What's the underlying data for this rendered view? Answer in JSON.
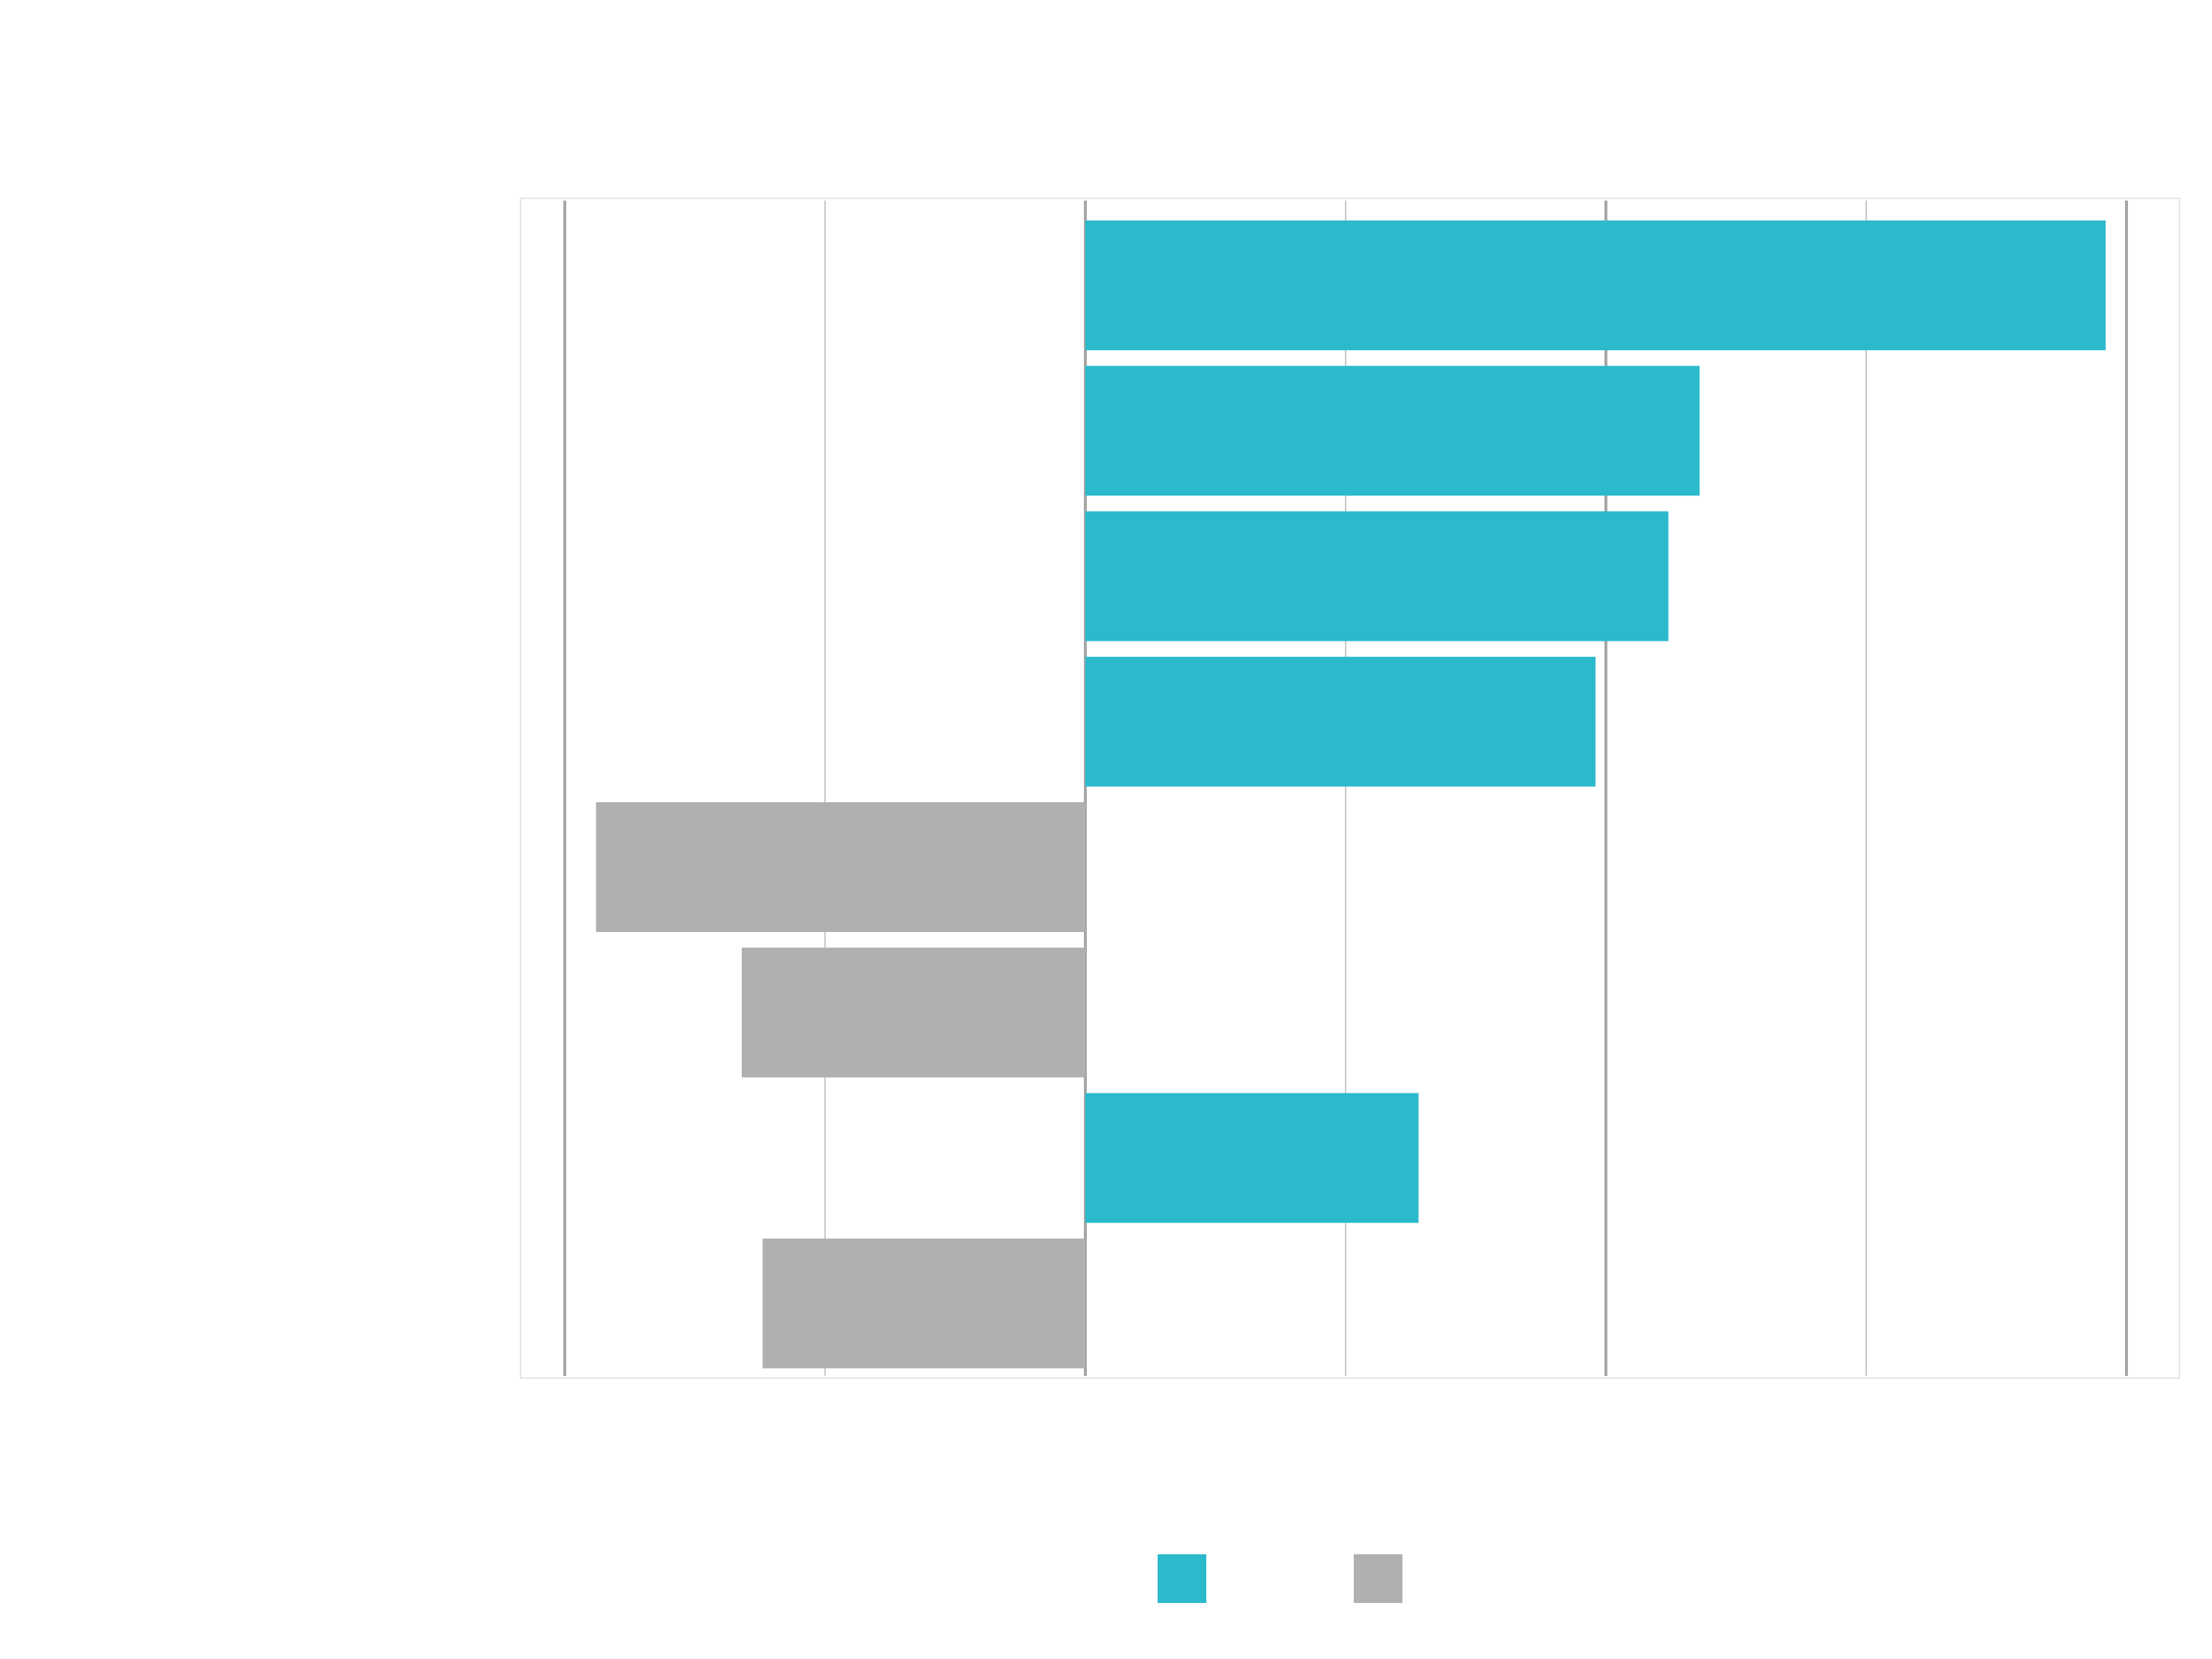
{
  "chart_data": {
    "type": "bar",
    "orientation": "horizontal",
    "title": "",
    "xlabel": "",
    "ylabel": "",
    "categories": [
      "",
      "",
      "",
      "",
      "",
      "",
      "",
      ""
    ],
    "values": [
      0.98,
      0.59,
      0.56,
      0.49,
      -0.47,
      -0.33,
      0.32,
      -0.31
    ],
    "xlim": [
      -0.5,
      1.0
    ],
    "x_gridlines": [
      -0.5,
      -0.25,
      0,
      0.25,
      0.5,
      0.75,
      1.0
    ],
    "grid": true,
    "legend_placement": "bottom",
    "series_colors": {
      "positive": "#2bbacb",
      "negative": "#b0b0b0"
    },
    "legend": [
      {
        "name": "",
        "color": "#2bbacb"
      },
      {
        "name": "",
        "color": "#b0b0b0"
      }
    ]
  }
}
